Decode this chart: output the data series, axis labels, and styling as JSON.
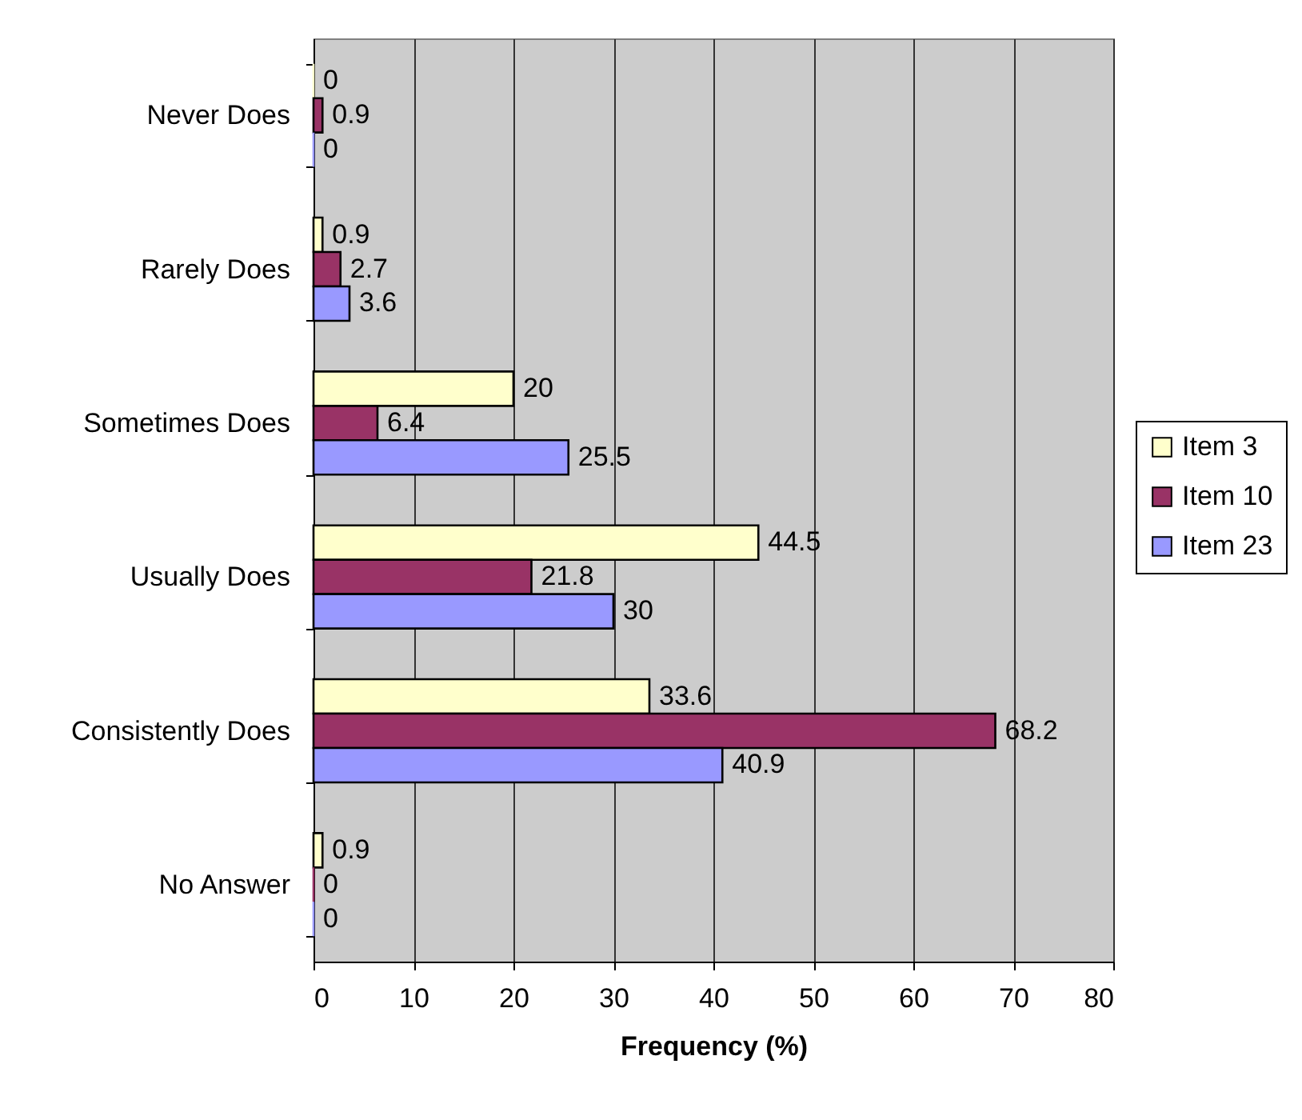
{
  "chart_data": {
    "type": "bar",
    "orientation": "horizontal",
    "xlabel": "Frequency (%)",
    "categories": [
      "Never Does",
      "Rarely Does",
      "Sometimes Does",
      "Usually Does",
      "Consistently Does",
      "No Answer"
    ],
    "series": [
      {
        "name": "Item 3",
        "color": "#ffffcc",
        "values": [
          0,
          0.9,
          20,
          44.5,
          33.6,
          0.9
        ]
      },
      {
        "name": "Item 10",
        "color": "#993366",
        "values": [
          0.9,
          2.7,
          6.4,
          21.8,
          68.2,
          0
        ]
      },
      {
        "name": "Item 23",
        "color": "#9999ff",
        "values": [
          0,
          3.6,
          25.5,
          30,
          40.9,
          0
        ]
      }
    ],
    "xlim": [
      0,
      80
    ],
    "xticks": [
      0,
      10,
      20,
      30,
      40,
      50,
      60,
      70,
      80
    ],
    "grid": "x",
    "legend": "right",
    "data_labels": true
  }
}
